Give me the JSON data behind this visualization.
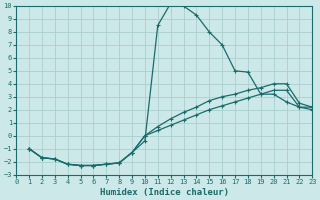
{
  "xlabel": "Humidex (Indice chaleur)",
  "background_color": "#cde8e8",
  "grid_color": "#aacfcf",
  "line_color": "#1a6b6b",
  "xlim": [
    0,
    23
  ],
  "ylim": [
    -3,
    10
  ],
  "xticks": [
    0,
    1,
    2,
    3,
    4,
    5,
    6,
    7,
    8,
    9,
    10,
    11,
    12,
    13,
    14,
    15,
    16,
    17,
    18,
    19,
    20,
    21,
    22,
    23
  ],
  "yticks": [
    -3,
    -2,
    -1,
    0,
    1,
    2,
    3,
    4,
    5,
    6,
    7,
    8,
    9,
    10
  ],
  "line1_x": [
    1,
    2,
    3,
    4,
    5,
    6,
    7,
    8,
    9,
    10,
    11,
    12,
    13,
    14,
    15,
    16,
    17,
    18,
    19,
    20,
    21,
    22,
    23
  ],
  "line1_y": [
    -1,
    -1.7,
    -1.8,
    -2.2,
    -2.3,
    -2.3,
    -2.2,
    -2.1,
    -1.3,
    -0.4,
    8.5,
    10.2,
    10.0,
    9.3,
    8.0,
    7.0,
    5.0,
    4.9,
    3.2,
    3.2,
    2.6,
    2.2,
    2.2
  ],
  "line2_x": [
    1,
    2,
    3,
    4,
    5,
    6,
    7,
    8,
    9,
    10,
    11,
    12,
    13,
    14,
    15,
    16,
    17,
    18,
    19,
    20,
    21,
    22,
    23
  ],
  "line2_y": [
    -1,
    -1.7,
    -1.8,
    -2.2,
    -2.3,
    -2.3,
    -2.2,
    -2.1,
    -1.3,
    0.0,
    0.7,
    1.3,
    1.8,
    2.2,
    2.7,
    3.0,
    3.2,
    3.5,
    3.7,
    4.0,
    4.0,
    2.5,
    2.2
  ],
  "line3_x": [
    1,
    2,
    3,
    4,
    5,
    6,
    7,
    8,
    9,
    10,
    11,
    12,
    13,
    14,
    15,
    16,
    17,
    18,
    19,
    20,
    21,
    22,
    23
  ],
  "line3_y": [
    -1,
    -1.7,
    -1.8,
    -2.2,
    -2.3,
    -2.3,
    -2.2,
    -2.1,
    -1.3,
    0.0,
    0.4,
    0.8,
    1.2,
    1.6,
    2.0,
    2.3,
    2.6,
    2.9,
    3.2,
    3.5,
    3.5,
    2.2,
    2.0
  ]
}
